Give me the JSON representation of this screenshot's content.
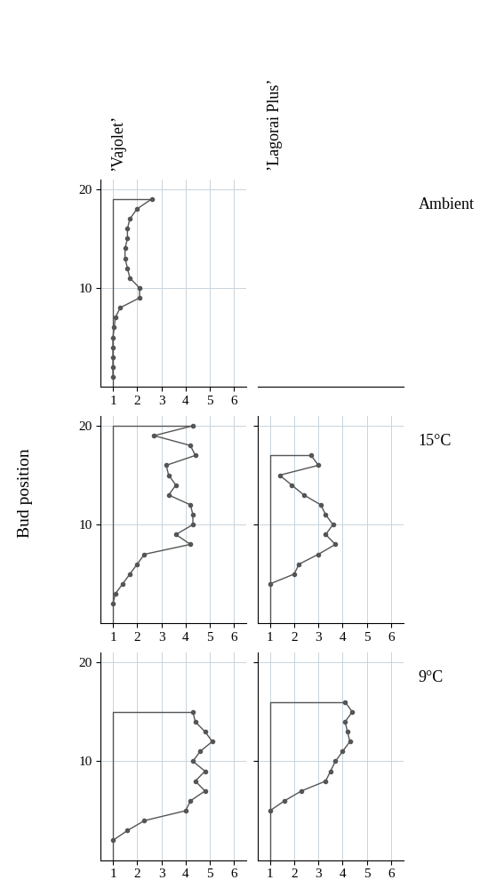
{
  "figure": {
    "ylabel": "Bud position",
    "columns": [
      "’Vajolet’",
      "’Lagorai Plus’"
    ],
    "rows": [
      "Ambient",
      "15°C",
      "9°C"
    ]
  },
  "chart_data": [
    {
      "type": "line",
      "variety": "’Vajolet’",
      "condition": "Ambient",
      "x": [
        1.0,
        1.0,
        1.0,
        1.0,
        1.0,
        1.05,
        1.1,
        1.3,
        2.1,
        2.1,
        1.7,
        1.6,
        1.5,
        1.5,
        1.6,
        1.6,
        1.7,
        2.0,
        2.6
      ],
      "y": [
        1,
        2,
        3,
        4,
        5,
        6,
        7,
        8,
        9,
        10,
        11,
        12,
        13,
        14,
        15,
        16,
        17,
        18,
        19
      ],
      "xlim": [
        0.5,
        6.5
      ],
      "xticks": [
        1,
        2,
        3,
        4,
        5,
        6
      ],
      "ylim": [
        0,
        21
      ],
      "yticks": [
        10,
        20
      ],
      "color": "#555555",
      "marker": "o",
      "grid": true
    },
    {
      "type": "line",
      "variety": "’Vajolet’",
      "condition": "15°C",
      "x": [
        1.0,
        1.1,
        1.4,
        1.7,
        2.0,
        2.3,
        4.2,
        3.6,
        4.3,
        4.3,
        4.2,
        3.3,
        3.6,
        3.3,
        3.2,
        4.4,
        4.2,
        2.7,
        4.3
      ],
      "y": [
        2,
        3,
        4,
        5,
        6,
        7,
        8,
        9,
        10,
        11,
        12,
        13,
        14,
        15,
        16,
        17,
        18,
        19,
        20
      ],
      "xlim": [
        0.5,
        6.5
      ],
      "xticks": [
        1,
        2,
        3,
        4,
        5,
        6
      ],
      "ylim": [
        0,
        21
      ],
      "yticks": [
        10,
        20
      ],
      "color": "#555555",
      "marker": "o",
      "grid": true
    },
    {
      "type": "line",
      "variety": "’Lagorai Plus’",
      "condition": "15°C",
      "x": [
        1.0,
        2.0,
        2.2,
        3.0,
        3.7,
        3.3,
        3.6,
        3.3,
        3.1,
        2.4,
        1.9,
        1.4,
        3.0,
        2.7
      ],
      "y": [
        4,
        5,
        6,
        7,
        8,
        9,
        10,
        11,
        12,
        13,
        14,
        15,
        16,
        17
      ],
      "xlim": [
        0.5,
        6.5
      ],
      "xticks": [
        1,
        2,
        3,
        4,
        5,
        6
      ],
      "ylim": [
        0,
        21
      ],
      "yticks": [
        10,
        20
      ],
      "color": "#555555",
      "marker": "o",
      "grid": true
    },
    {
      "type": "line",
      "variety": "’Vajolet’",
      "condition": "9°C",
      "x": [
        1.0,
        1.6,
        2.3,
        4.0,
        4.2,
        4.8,
        4.4,
        4.8,
        4.3,
        4.6,
        5.1,
        4.8,
        4.4,
        4.3
      ],
      "y": [
        2,
        3,
        4,
        5,
        6,
        7,
        8,
        9,
        10,
        11,
        12,
        13,
        14,
        15
      ],
      "xlim": [
        0.5,
        6.5
      ],
      "xticks": [
        1,
        2,
        3,
        4,
        5,
        6
      ],
      "ylim": [
        0,
        21
      ],
      "yticks": [
        10,
        20
      ],
      "color": "#555555",
      "marker": "o",
      "grid": true
    },
    {
      "type": "line",
      "variety": "’Lagorai Plus’",
      "condition": "9°C",
      "x": [
        1.0,
        1.6,
        2.3,
        3.3,
        3.5,
        3.7,
        4.0,
        4.3,
        4.2,
        4.1,
        4.4,
        4.1
      ],
      "y": [
        5,
        6,
        7,
        8,
        9,
        10,
        11,
        12,
        13,
        14,
        15,
        16
      ],
      "xlim": [
        0.5,
        6.5
      ],
      "xticks": [
        1,
        2,
        3,
        4,
        5,
        6
      ],
      "ylim": [
        0,
        21
      ],
      "yticks": [
        10,
        20
      ],
      "color": "#555555",
      "marker": "o",
      "grid": true
    }
  ]
}
